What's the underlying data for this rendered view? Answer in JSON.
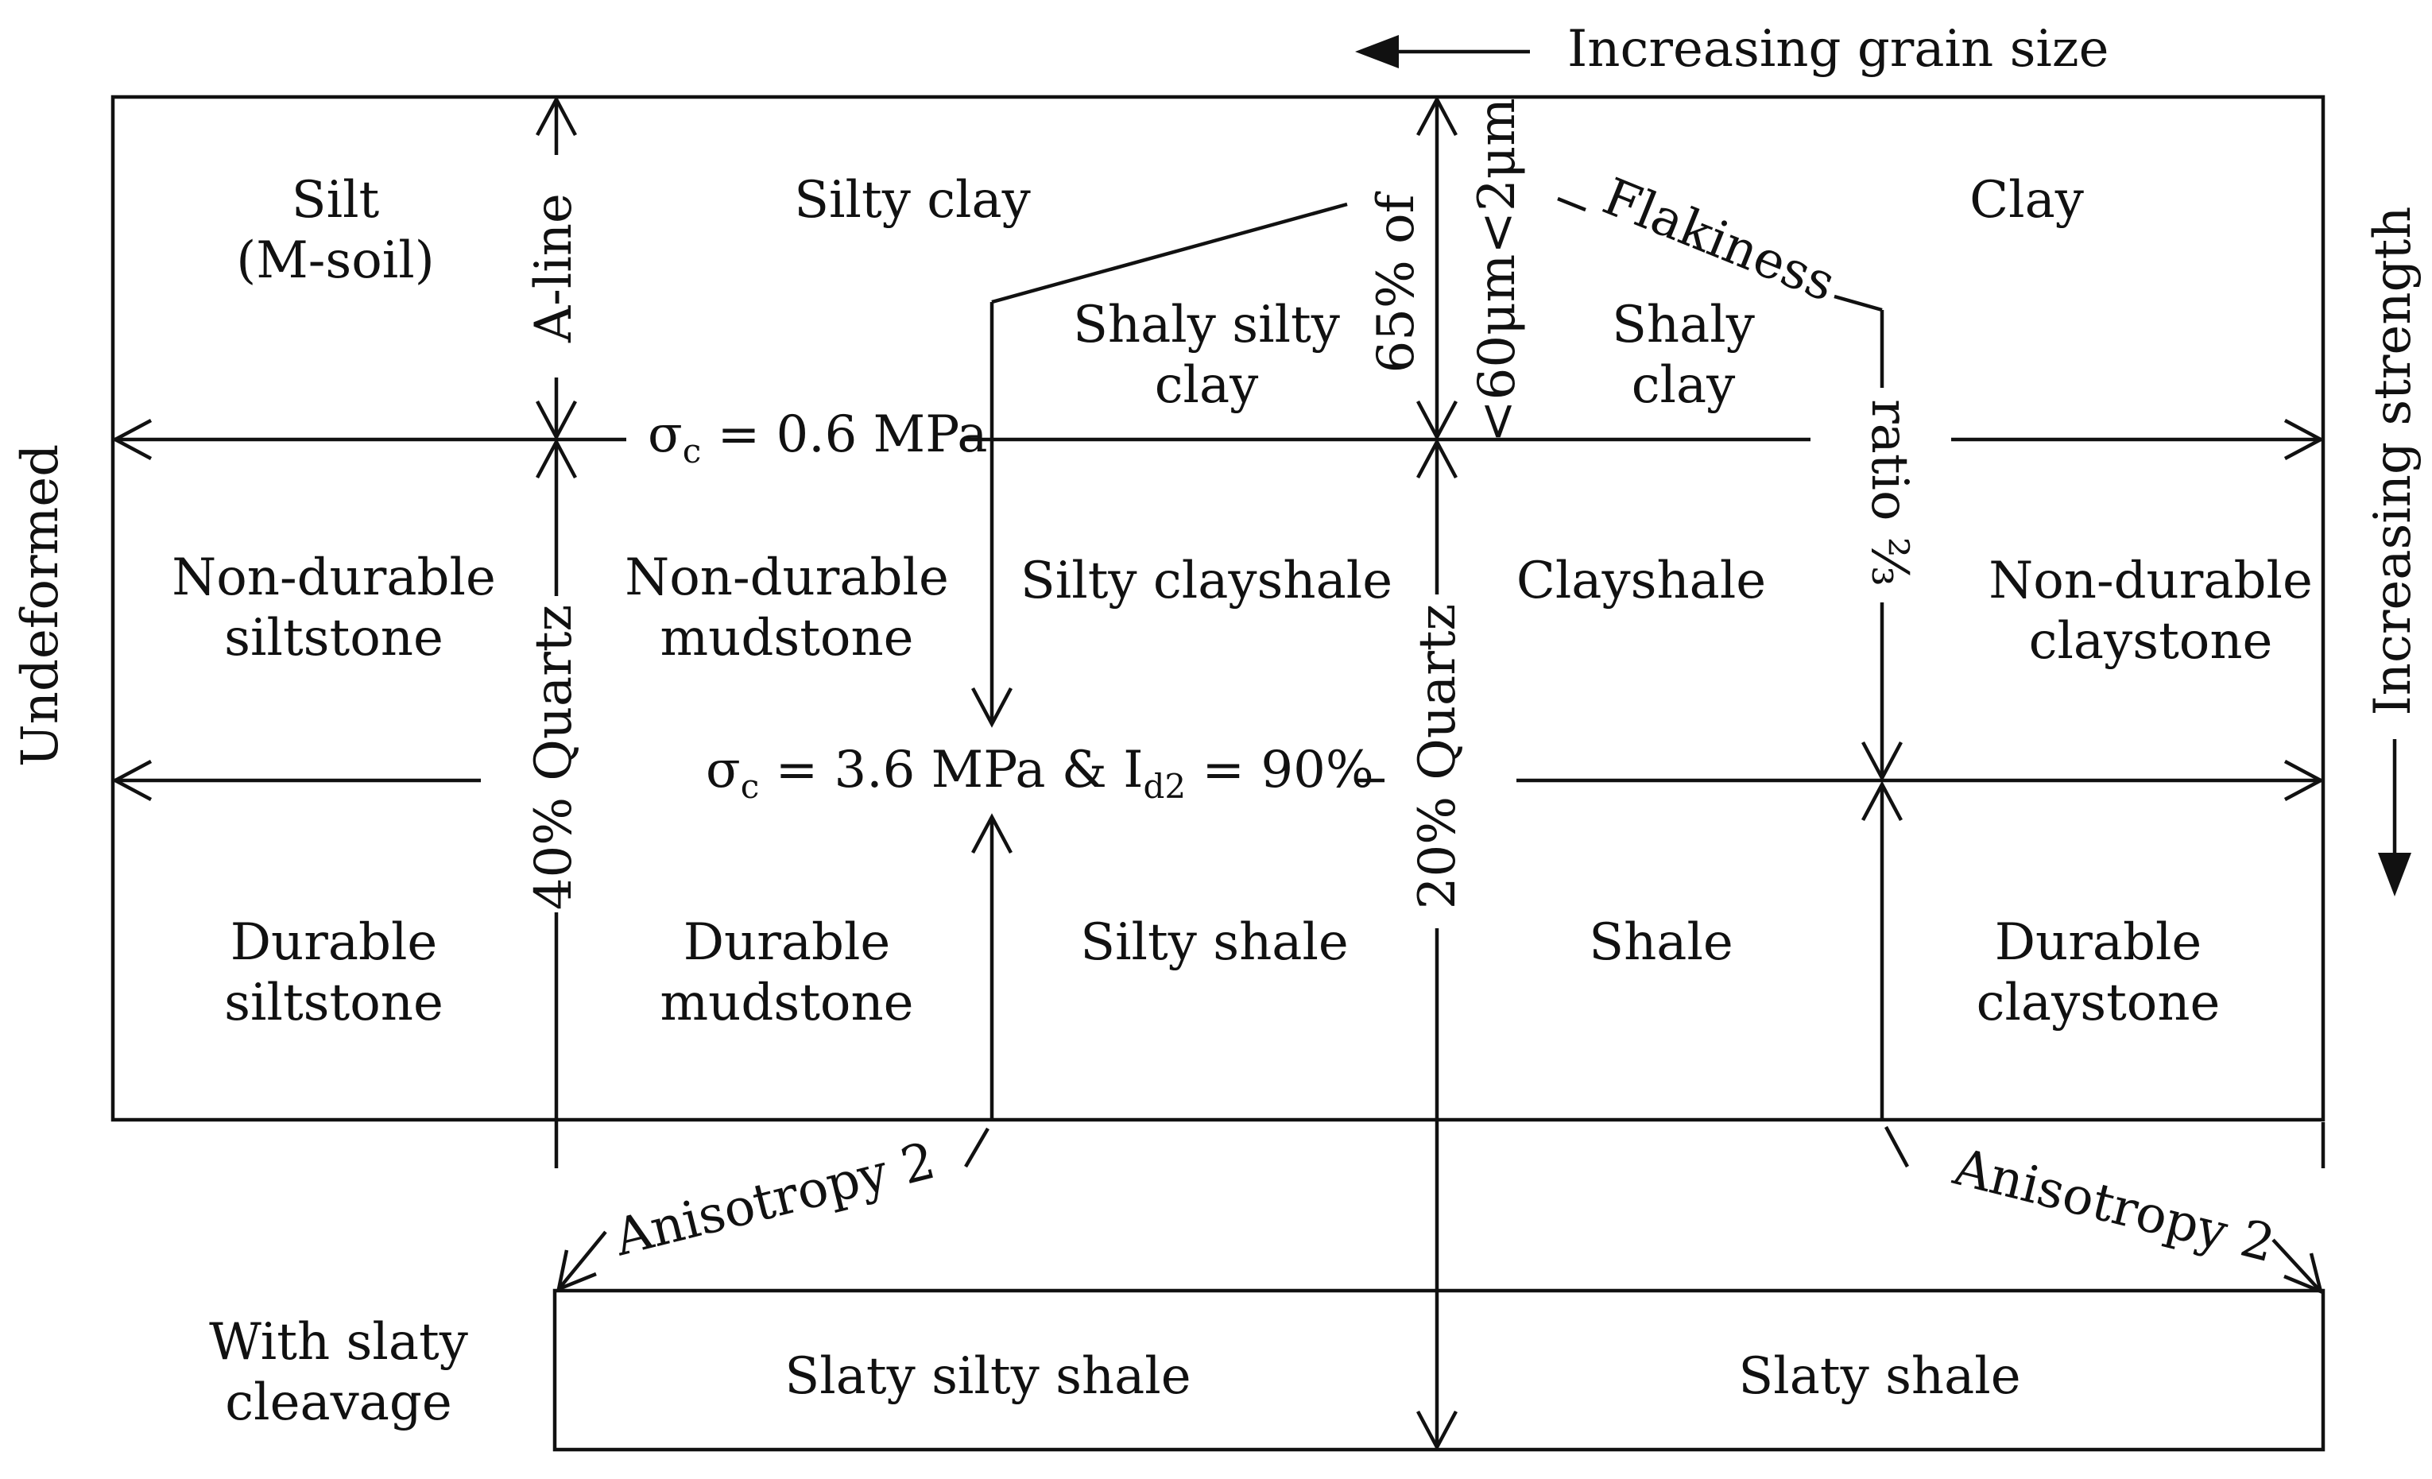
{
  "top_label": "Increasing grain size",
  "right_label": "Increasing strength",
  "left_label": "Undeformed",
  "bottom_left_label": [
    "With slaty",
    "cleavage"
  ],
  "boundaries": {
    "a_line": "A-line",
    "sigma1": {
      "sym": "σ",
      "sub": "c",
      "rest": " = 0.6 MPa"
    },
    "sigma2": {
      "sym": "σ",
      "sub": "c",
      "mid": " = 3.6 MPa & I",
      "sub2": "d2",
      "rest": " = 90%"
    },
    "quartz40": "40% Quartz",
    "quartz20": "20% Quartz",
    "pct65": "65% of",
    "clay_size": "<60μm<2μm",
    "flakiness": "Flakiness",
    "ratio": "ratio ⅔",
    "anisotropy_left": "Anisotropy 2",
    "anisotropy_right": "Anisotropy 2"
  },
  "cells": {
    "silt": [
      "Silt",
      "(M-soil)"
    ],
    "silty_clay": "Silty clay",
    "clay": "Clay",
    "shaly_silty_clay": [
      "Shaly silty",
      "clay"
    ],
    "shaly_clay": [
      "Shaly",
      "clay"
    ],
    "nd_siltstone": [
      "Non-durable",
      "siltstone"
    ],
    "nd_mudstone": [
      "Non-durable",
      "mudstone"
    ],
    "silty_clayshale": "Silty clayshale",
    "clayshale": "Clayshale",
    "nd_claystone": [
      "Non-durable",
      "claystone"
    ],
    "d_siltstone": [
      "Durable",
      "siltstone"
    ],
    "d_mudstone": [
      "Durable",
      "mudstone"
    ],
    "silty_shale": "Silty shale",
    "shale": "Shale",
    "d_claystone": [
      "Durable",
      "claystone"
    ],
    "slaty_silty_shale": "Slaty silty shale",
    "slaty_shale": "Slaty shale"
  }
}
